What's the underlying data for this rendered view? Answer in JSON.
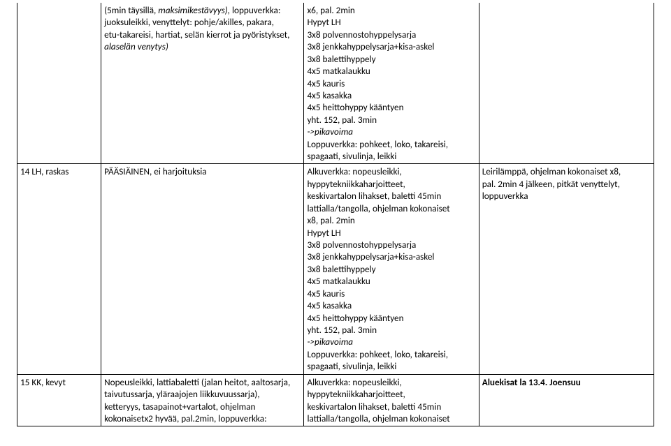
{
  "row0": {
    "c1": {
      "l1_pre": "(5min täysillä, ",
      "l1_it": "maksimikestävyys),",
      "l1_post": " loppuverkka:",
      "l2": "juoksuleikki, venyttelyt: pohje/akilles, pakara,",
      "l3": "etu-takareisi, hartiat, selän kierrot ja pyöristykset,",
      "l4_it": "alaselän venytys)"
    },
    "c2": {
      "l1": "x6, pal. 2min",
      "l2": "Hypyt LH",
      "l3": "3x8 polvennostohyppelysarja",
      "l4": "3x8 jenkkahyppelysarja+kisa-askel",
      "l5": "3x8 balettihyppely",
      "l6": "4x5 matkalaukku",
      "l7": "4x5 kauris",
      "l8": "4x5 kasakka",
      "l9": "4x5 heittohyppy kääntyen",
      "l10": "yht. 152, pal. 3min",
      "l11_it": "->pikavoima",
      "l12": "Loppuverkka:  pohkeet, loko, takareisi,",
      "l13": "spagaati, sivulinja, leikki"
    }
  },
  "row1": {
    "c0": "14 LH, raskas",
    "c1": "PÄÄSIÄINEN, ei harjoituksia",
    "c2": {
      "l1": "Alkuverkka: nopeusleikki,",
      "l2": "hyppytekniikkaharjoitteet,",
      "l3": "keskivartalon lihakset, baletti 45min",
      "l4": "lattialla/tangolla, ohjelman kokonaiset",
      "l5": "x8, pal. 2min",
      "l6": "Hypyt LH",
      "l7": "3x8 polvennostohyppelysarja",
      "l8": "3x8 jenkkahyppelysarja+kisa-askel",
      "l9": "3x8 balettihyppely",
      "l10": "4x5 matkalaukku",
      "l11": "4x5 kauris",
      "l12": "4x5 kasakka",
      "l13": "4x5 heittohyppy kääntyen",
      "l14": "yht. 152, pal. 3min",
      "l15_it": "->pikavoima",
      "l16": "Loppuverkka:  pohkeet, loko, takareisi,",
      "l17": "spagaati, sivulinja, leikki"
    },
    "c3": {
      "l1": "Leirilämppä, ohjelman kokonaiset x8,",
      "l2": "pal. 2min 4 jälkeen, pitkät venyttelyt,",
      "l3": "loppuverkka"
    }
  },
  "row2": {
    "c0": "15 KK, kevyt",
    "c1": {
      "l1": "Nopeusleikki, lattiabaletti (jalan heitot, aaltosarja,",
      "l2": "taivutussarja, yläraajojen liikkuvuussarja),",
      "l3": "ketteryys, tasapainot+vartalot, ohjelman",
      "l4": "kokonaisetx2 hyvää, pal.2min, loppuverkka:"
    },
    "c2": {
      "l1": "Alkuverkka: nopeusleikki,",
      "l2": "hyppytekniikkaharjoitteet,",
      "l3": "keskivartalon lihakset, baletti 45min",
      "l4": "lattialla/tangolla, ohjelman kokonaiset"
    },
    "c3_b": "Aluekisat la 13.4. Joensuu"
  }
}
